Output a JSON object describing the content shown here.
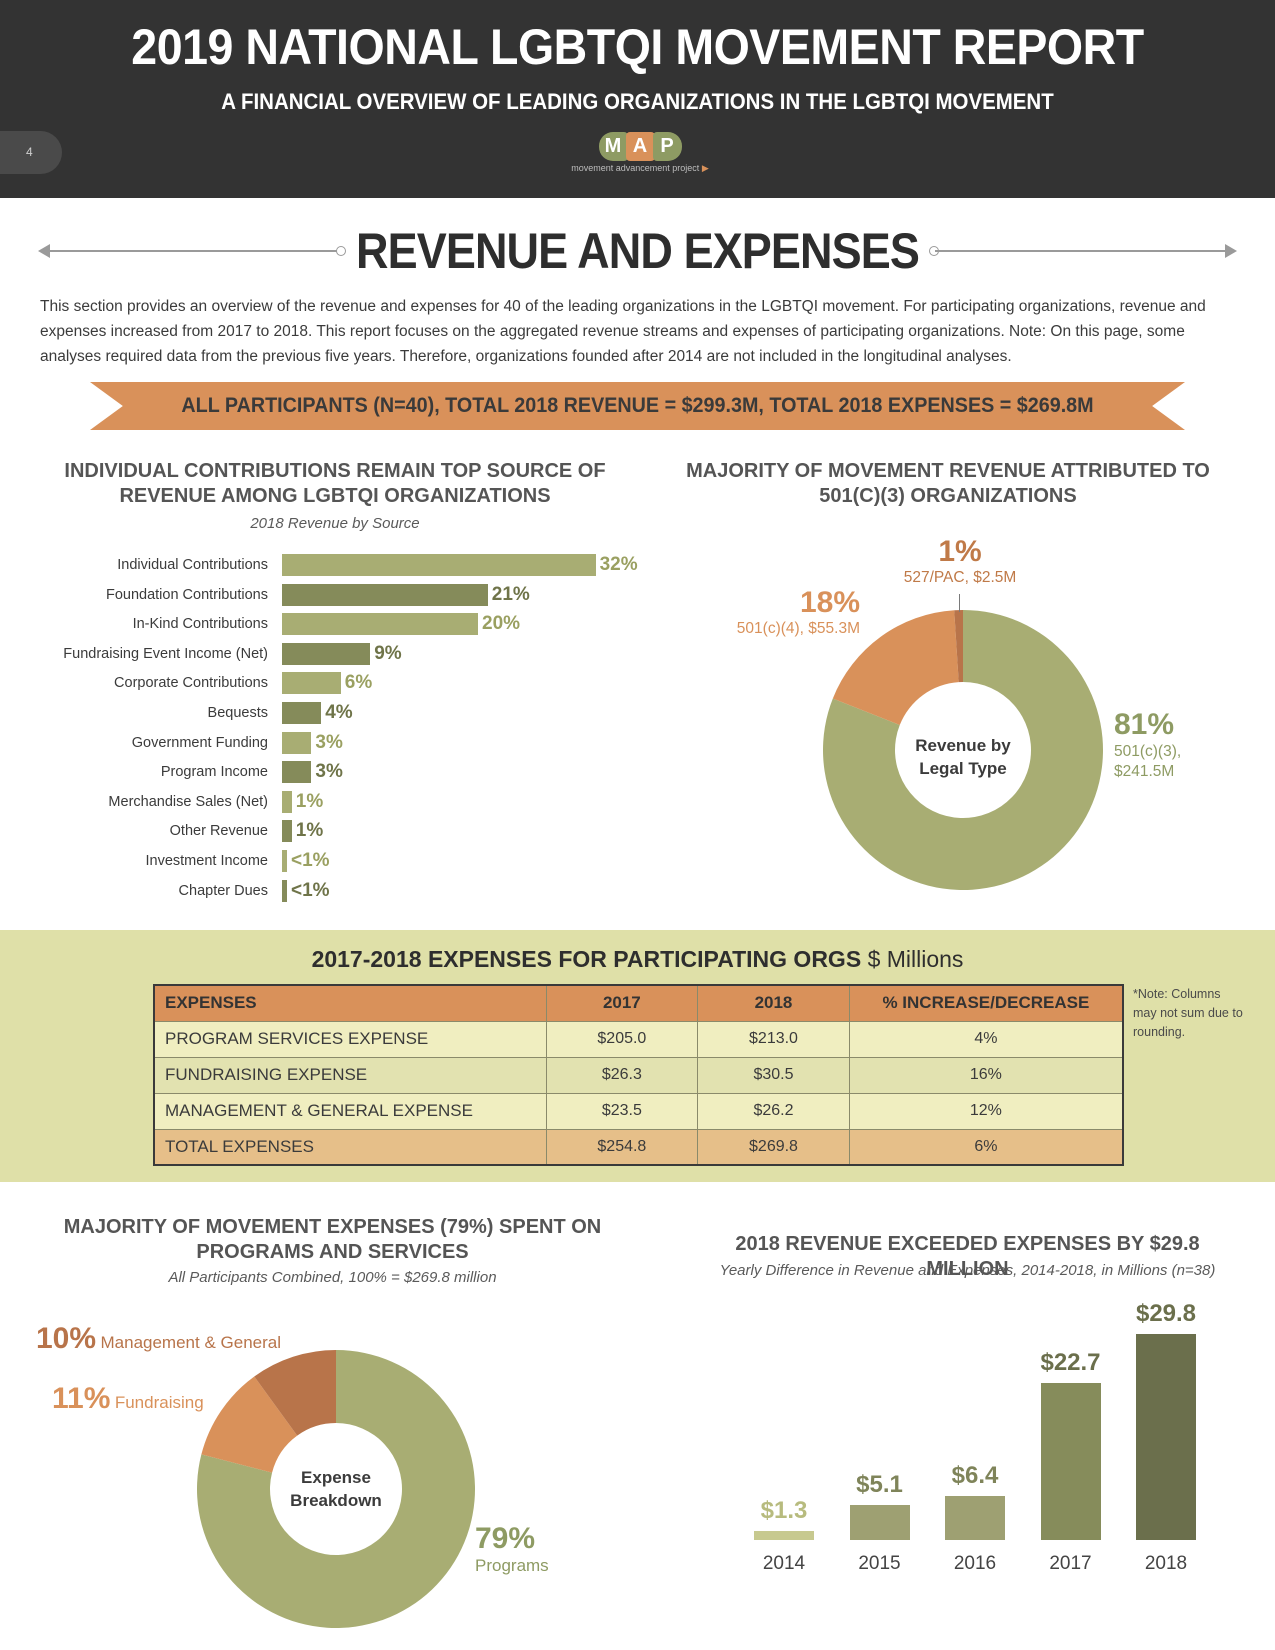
{
  "header": {
    "title": "2019 NATIONAL LGBTQI MOVEMENT REPORT",
    "subtitle": "A FINANCIAL OVERVIEW OF LEADING ORGANIZATIONS IN THE LGBTQI MOVEMENT",
    "page_number": "4",
    "logo": {
      "letters": [
        "M",
        "A",
        "P"
      ],
      "tagline": "movement advancement project"
    }
  },
  "section": {
    "title": "REVENUE AND EXPENSES",
    "intro": "This section provides an overview of the revenue and expenses for 40 of the leading organizations in the LGBTQI movement. For participating organizations, revenue and expenses increased from 2017 to 2018. This report focuses on the aggregated revenue streams and expenses of participating organizations. Note: On this page, some analyses required data from the previous five years. Therefore, organizations founded after 2014 are not included in the longitudinal analyses.",
    "banner": "ALL PARTICIPANTS (N=40), TOTAL 2018 REVENUE = $299.3M, TOTAL 2018 EXPENSES = $269.8M"
  },
  "colors": {
    "header_bg": "#333333",
    "olive_light": "#a8ad73",
    "olive_dark": "#858b5a",
    "orange": "#d9915a",
    "brown": "#b8744a",
    "band": "#dfe0a8"
  },
  "revenue_by_source": {
    "title_line1": "INDIVIDUAL CONTRIBUTIONS REMAIN TOP SOURCE OF",
    "title_line2": "REVENUE AMONG LGBTQI ORGANIZATIONS",
    "subtitle": "2018 Revenue by Source",
    "chart_data": {
      "type": "bar",
      "orientation": "horizontal",
      "categories": [
        "Individual Contributions",
        "Foundation Contributions",
        "In-Kind Contributions",
        "Fundraising Event Income (Net)",
        "Corporate Contributions",
        "Bequests",
        "Government Funding",
        "Program Income",
        "Merchandise Sales (Net)",
        "Other Revenue",
        "Investment Income",
        "Chapter Dues"
      ],
      "values": [
        32,
        21,
        20,
        9,
        6,
        4,
        3,
        3,
        1,
        1,
        0.4,
        0.4
      ],
      "labels": [
        "32%",
        "21%",
        "20%",
        "9%",
        "6%",
        "4%",
        "3%",
        "3%",
        "1%",
        "1%",
        "<1%",
        "<1%"
      ]
    }
  },
  "revenue_by_legal_type": {
    "title_line1": "MAJORITY OF MOVEMENT REVENUE ATTRIBUTED TO",
    "title_line2": "501(C)(3) ORGANIZATIONS",
    "center_line1": "Revenue by",
    "center_line2": "Legal Type",
    "chart_data": {
      "type": "pie",
      "donut": true,
      "slices": [
        {
          "pct_label": "81%",
          "detail_line1": "501(c)(3),",
          "detail_line2": "$241.5M",
          "value": 81,
          "color": "#a8ad73"
        },
        {
          "pct_label": "18%",
          "detail_line1": "501(c)(4), $55.3M",
          "value": 18,
          "color": "#d9915a"
        },
        {
          "pct_label": "1%",
          "detail_line1": "527/PAC, $2.5M",
          "value": 1,
          "color": "#b8744a"
        }
      ]
    }
  },
  "expenses_table": {
    "title_bold": "2017-2018 EXPENSES FOR PARTICIPATING ORGS",
    "title_unit": "$ Millions",
    "note": "*Note: Columns may not sum due to rounding.",
    "chart_data": {
      "type": "table",
      "headers": [
        "EXPENSES",
        "2017",
        "2018",
        "% INCREASE/DECREASE"
      ],
      "rows": [
        [
          "PROGRAM SERVICES EXPENSE",
          "$205.0",
          "$213.0",
          "4%"
        ],
        [
          "FUNDRAISING EXPENSE",
          "$26.3",
          "$30.5",
          "16%"
        ],
        [
          "MANAGEMENT & GENERAL EXPENSE",
          "$23.5",
          "$26.2",
          "12%"
        ],
        [
          "TOTAL EXPENSES",
          "$254.8",
          "$269.8",
          "6%"
        ]
      ]
    }
  },
  "expense_breakdown": {
    "title_line1": "MAJORITY OF MOVEMENT EXPENSES (79%) SPENT ON",
    "title_line2": "PROGRAMS AND SERVICES",
    "subtitle": "All Participants Combined, 100% = $269.8 million",
    "center_line1": "Expense",
    "center_line2": "Breakdown",
    "chart_data": {
      "type": "pie",
      "donut": true,
      "slices": [
        {
          "pct_label": "79%",
          "name": "Programs",
          "value": 79,
          "color": "#a8ad73"
        },
        {
          "pct_label": "11%",
          "name": "Fundraising",
          "value": 11,
          "color": "#d9915a"
        },
        {
          "pct_label": "10%",
          "name": "Management & General",
          "value": 10,
          "color": "#b8744a"
        }
      ]
    }
  },
  "revenue_minus_expenses": {
    "title": "2018 REVENUE EXCEEDED EXPENSES BY $29.8 MILLION",
    "subtitle": "Yearly Difference in Revenue and Expenses, 2014-2018, in Millions (n=38)",
    "chart_data": {
      "type": "bar",
      "categories": [
        "2014",
        "2015",
        "2016",
        "2017",
        "2018"
      ],
      "values": [
        1.3,
        5.1,
        6.4,
        22.7,
        29.8
      ],
      "labels": [
        "$1.3",
        "$5.1",
        "$6.4",
        "$22.7",
        "$29.8"
      ],
      "colors": [
        "#c7c98f",
        "#9ea072",
        "#9ea072",
        "#868c5b",
        "#6b6f4c"
      ]
    }
  }
}
